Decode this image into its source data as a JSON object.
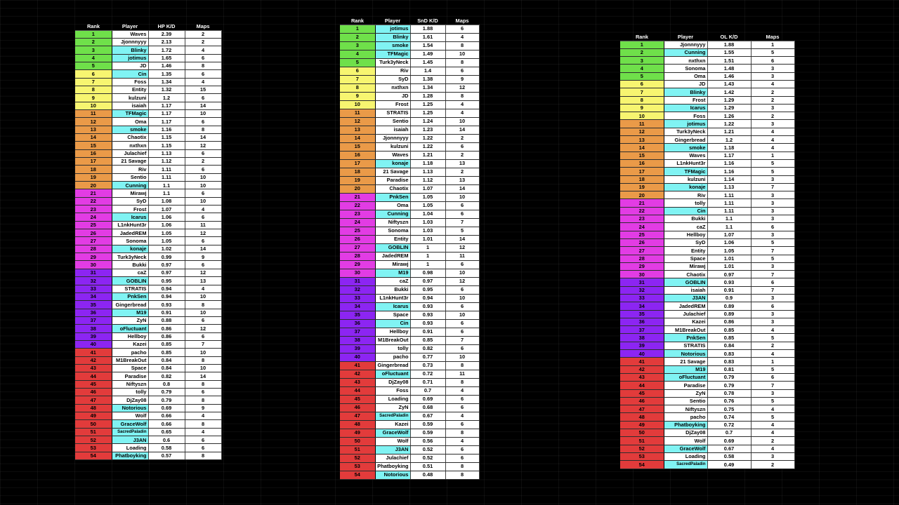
{
  "colors": {
    "background": "#000000",
    "cell": "#ffffff",
    "player_highlight": "#80f3f3",
    "tiers": [
      "#6fe04a",
      "#f7f570",
      "#ea9a48",
      "#e23ce4",
      "#8c25f2",
      "#e23b3b"
    ]
  },
  "tables": [
    {
      "headers": {
        "rank": "Rank",
        "player": "Player",
        "kd": "HP K/D",
        "maps": "Maps"
      },
      "tier_ranges": [
        [
          1,
          5
        ],
        [
          6,
          10
        ],
        [
          11,
          20
        ],
        [
          21,
          30
        ],
        [
          31,
          40
        ],
        [
          41,
          54
        ]
      ],
      "rows": [
        [
          "1",
          "Waves",
          "2.39",
          "2",
          false
        ],
        [
          "2",
          "Jjonnnyyy",
          "2.13",
          "2",
          false
        ],
        [
          "3",
          "Blinky",
          "1.72",
          "4",
          true
        ],
        [
          "4",
          "jotimus",
          "1.65",
          "6",
          true
        ],
        [
          "5",
          "JD",
          "1.46",
          "8",
          false
        ],
        [
          "6",
          "Cin",
          "1.35",
          "6",
          true
        ],
        [
          "7",
          "Foss",
          "1.34",
          "4",
          false
        ],
        [
          "8",
          "Entity",
          "1.32",
          "15",
          false
        ],
        [
          "9",
          "kulzuni",
          "1.2",
          "6",
          false
        ],
        [
          "10",
          "isaiah",
          "1.17",
          "14",
          false
        ],
        [
          "11",
          "TFMagic",
          "1.17",
          "10",
          true
        ],
        [
          "12",
          "Oma",
          "1.17",
          "6",
          false
        ],
        [
          "13",
          "smoke",
          "1.16",
          "8",
          true
        ],
        [
          "14",
          "Chaotix",
          "1.15",
          "14",
          false
        ],
        [
          "15",
          "nxthxn",
          "1.15",
          "12",
          false
        ],
        [
          "16",
          "Julachief",
          "1.13",
          "6",
          false
        ],
        [
          "17",
          "21 Savage",
          "1.12",
          "2",
          false
        ],
        [
          "18",
          "Riv",
          "1.11",
          "6",
          false
        ],
        [
          "19",
          "Sentio",
          "1.11",
          "10",
          false
        ],
        [
          "20",
          "Cunning",
          "1.1",
          "10",
          true
        ],
        [
          "21",
          "Mirawj",
          "1.1",
          "6",
          false
        ],
        [
          "22",
          "SyD",
          "1.08",
          "10",
          false
        ],
        [
          "23",
          "Frost",
          "1.07",
          "4",
          false
        ],
        [
          "24",
          "Icarus",
          "1.06",
          "6",
          true
        ],
        [
          "25",
          "L1nkHunt3r",
          "1.06",
          "11",
          false
        ],
        [
          "26",
          "JadedREM",
          "1.05",
          "12",
          false
        ],
        [
          "27",
          "Sonoma",
          "1.05",
          "6",
          false
        ],
        [
          "28",
          "konaje",
          "1.02",
          "14",
          true
        ],
        [
          "29",
          "Turk3yNeck",
          "0.99",
          "9",
          false
        ],
        [
          "30",
          "Bukki",
          "0.97",
          "6",
          false
        ],
        [
          "31",
          "caZ",
          "0.97",
          "12",
          false
        ],
        [
          "32",
          "GOBLIN",
          "0.95",
          "13",
          true
        ],
        [
          "33",
          "STRATIS",
          "0.94",
          "4",
          false
        ],
        [
          "34",
          "PnkSen",
          "0.94",
          "10",
          true
        ],
        [
          "35",
          "Gingerbread",
          "0.93",
          "8",
          false
        ],
        [
          "36",
          "M19",
          "0.91",
          "10",
          true
        ],
        [
          "37",
          "ZyN",
          "0.88",
          "6",
          false
        ],
        [
          "38",
          "oFluctuant",
          "0.86",
          "12",
          true
        ],
        [
          "39",
          "Hellboy",
          "0.86",
          "6",
          false
        ],
        [
          "40",
          "Kazei",
          "0.85",
          "7",
          false
        ],
        [
          "41",
          "pacho",
          "0.85",
          "10",
          false
        ],
        [
          "42",
          "M1BreakOut",
          "0.84",
          "8",
          false
        ],
        [
          "43",
          "Space",
          "0.84",
          "10",
          false
        ],
        [
          "44",
          "Paradise",
          "0.82",
          "14",
          false
        ],
        [
          "45",
          "Niftyszn",
          "0.8",
          "8",
          false
        ],
        [
          "46",
          "tolly",
          "0.79",
          "6",
          false
        ],
        [
          "47",
          "DjZay08",
          "0.79",
          "8",
          false
        ],
        [
          "48",
          "Notorious",
          "0.69",
          "9",
          true
        ],
        [
          "49",
          "Wolf",
          "0.66",
          "4",
          false
        ],
        [
          "50",
          "GraceWolf",
          "0.66",
          "8",
          true
        ],
        [
          "51",
          "SacredPaladin",
          "0.65",
          "4",
          true
        ],
        [
          "52",
          "J3AN",
          "0.6",
          "6",
          true
        ],
        [
          "53",
          "Loading",
          "0.58",
          "6",
          false
        ],
        [
          "54",
          "Phatboyking",
          "0.57",
          "8",
          true
        ]
      ]
    },
    {
      "headers": {
        "rank": "Rank",
        "player": "Player",
        "kd": "SnD K/D",
        "maps": "Maps"
      },
      "tier_ranges": [
        [
          1,
          5
        ],
        [
          6,
          10
        ],
        [
          11,
          20
        ],
        [
          21,
          30
        ],
        [
          31,
          40
        ],
        [
          41,
          54
        ]
      ],
      "rows": [
        [
          "1",
          "jotimus",
          "1.88",
          "6",
          true
        ],
        [
          "2",
          "Blinky",
          "1.61",
          "4",
          true
        ],
        [
          "3",
          "smoke",
          "1.54",
          "8",
          true
        ],
        [
          "4",
          "TFMagic",
          "1.49",
          "10",
          true
        ],
        [
          "5",
          "Turk3yNeck",
          "1.45",
          "8",
          false
        ],
        [
          "6",
          "Riv",
          "1.4",
          "6",
          false
        ],
        [
          "7",
          "SyD",
          "1.38",
          "9",
          false
        ],
        [
          "8",
          "nxthxn",
          "1.34",
          "12",
          false
        ],
        [
          "9",
          "JD",
          "1.28",
          "8",
          false
        ],
        [
          "10",
          "Frost",
          "1.25",
          "4",
          false
        ],
        [
          "11",
          "STRATIS",
          "1.25",
          "4",
          false
        ],
        [
          "12",
          "Sentio",
          "1.24",
          "10",
          false
        ],
        [
          "13",
          "isaiah",
          "1.23",
          "14",
          false
        ],
        [
          "14",
          "Jjonnnyyy",
          "1.22",
          "2",
          false
        ],
        [
          "15",
          "kulzuni",
          "1.22",
          "6",
          false
        ],
        [
          "16",
          "Waves",
          "1.21",
          "2",
          false
        ],
        [
          "17",
          "konaje",
          "1.18",
          "13",
          true
        ],
        [
          "18",
          "21 Savage",
          "1.13",
          "2",
          false
        ],
        [
          "19",
          "Paradise",
          "1.12",
          "13",
          false
        ],
        [
          "20",
          "Chaotix",
          "1.07",
          "14",
          false
        ],
        [
          "21",
          "PnkSen",
          "1.05",
          "10",
          true
        ],
        [
          "22",
          "Oma",
          "1.05",
          "6",
          false
        ],
        [
          "23",
          "Cunning",
          "1.04",
          "6",
          true
        ],
        [
          "24",
          "Niftyszn",
          "1.03",
          "7",
          false
        ],
        [
          "25",
          "Sonoma",
          "1.03",
          "5",
          false
        ],
        [
          "26",
          "Entity",
          "1.01",
          "14",
          false
        ],
        [
          "27",
          "GOBLIN",
          "1",
          "12",
          true
        ],
        [
          "28",
          "JadedREM",
          "1",
          "11",
          false
        ],
        [
          "29",
          "Mirawj",
          "1",
          "6",
          false
        ],
        [
          "30",
          "M19",
          "0.98",
          "10",
          true
        ],
        [
          "31",
          "caZ",
          "0.97",
          "12",
          false
        ],
        [
          "32",
          "Bukki",
          "0.95",
          "6",
          false
        ],
        [
          "33",
          "L1nkHunt3r",
          "0.94",
          "10",
          false
        ],
        [
          "34",
          "Icarus",
          "0.93",
          "6",
          true
        ],
        [
          "35",
          "Space",
          "0.93",
          "10",
          false
        ],
        [
          "36",
          "Cin",
          "0.93",
          "6",
          true
        ],
        [
          "37",
          "Hellboy",
          "0.91",
          "6",
          false
        ],
        [
          "38",
          "M1BreakOut",
          "0.85",
          "7",
          false
        ],
        [
          "39",
          "tolly",
          "0.82",
          "6",
          false
        ],
        [
          "40",
          "pacho",
          "0.77",
          "10",
          false
        ],
        [
          "41",
          "Gingerbread",
          "0.73",
          "8",
          false
        ],
        [
          "42",
          "oFluctuant",
          "0.72",
          "11",
          true
        ],
        [
          "43",
          "DjZay08",
          "0.71",
          "8",
          false
        ],
        [
          "44",
          "Foss",
          "0.7",
          "4",
          false
        ],
        [
          "45",
          "Loading",
          "0.69",
          "6",
          false
        ],
        [
          "46",
          "ZyN",
          "0.68",
          "6",
          false
        ],
        [
          "47",
          "SacredPaladin",
          "0.67",
          "4",
          true
        ],
        [
          "48",
          "Kazei",
          "0.59",
          "6",
          false
        ],
        [
          "49",
          "GraceWolf",
          "0.59",
          "8",
          true
        ],
        [
          "50",
          "Wolf",
          "0.56",
          "4",
          false
        ],
        [
          "51",
          "J3AN",
          "0.52",
          "6",
          true
        ],
        [
          "52",
          "Julachief",
          "0.52",
          "6",
          false
        ],
        [
          "53",
          "Phatboyking",
          "0.51",
          "8",
          false
        ],
        [
          "54",
          "Notorious",
          "0.48",
          "8",
          true
        ]
      ]
    },
    {
      "headers": {
        "rank": "Rank",
        "player": "Player",
        "kd": "OL K/D",
        "maps": "Maps"
      },
      "tier_ranges": [
        [
          1,
          5
        ],
        [
          6,
          10
        ],
        [
          11,
          20
        ],
        [
          21,
          30
        ],
        [
          31,
          40
        ],
        [
          41,
          54
        ]
      ],
      "rows": [
        [
          "1",
          "Jjonnnyyy",
          "1.88",
          "1",
          false
        ],
        [
          "2",
          "Cunning",
          "1.55",
          "5",
          true
        ],
        [
          "3",
          "nxthxn",
          "1.51",
          "6",
          false
        ],
        [
          "4",
          "Sonoma",
          "1.48",
          "3",
          false
        ],
        [
          "5",
          "Oma",
          "1.46",
          "3",
          false
        ],
        [
          "6",
          "JD",
          "1.43",
          "4",
          false
        ],
        [
          "7",
          "Blinky",
          "1.42",
          "2",
          true
        ],
        [
          "8",
          "Frost",
          "1.29",
          "2",
          false
        ],
        [
          "9",
          "Icarus",
          "1.29",
          "3",
          true
        ],
        [
          "10",
          "Foss",
          "1.26",
          "2",
          false
        ],
        [
          "11",
          "jotimus",
          "1.22",
          "3",
          true
        ],
        [
          "12",
          "Turk3yNeck",
          "1.21",
          "4",
          false
        ],
        [
          "13",
          "Gingerbread",
          "1.2",
          "4",
          false
        ],
        [
          "14",
          "smoke",
          "1.18",
          "4",
          true
        ],
        [
          "15",
          "Waves",
          "1.17",
          "1",
          false
        ],
        [
          "16",
          "L1nkHunt3r",
          "1.16",
          "5",
          false
        ],
        [
          "17",
          "TFMagic",
          "1.16",
          "5",
          true
        ],
        [
          "18",
          "kulzuni",
          "1.14",
          "3",
          false
        ],
        [
          "19",
          "konaje",
          "1.13",
          "7",
          true
        ],
        [
          "20",
          "Riv",
          "1.11",
          "3",
          false
        ],
        [
          "21",
          "tolly",
          "1.11",
          "3",
          false
        ],
        [
          "22",
          "Cin",
          "1.11",
          "3",
          true
        ],
        [
          "23",
          "Bukki",
          "1.1",
          "3",
          false
        ],
        [
          "24",
          "caZ",
          "1.1",
          "6",
          false
        ],
        [
          "25",
          "Hellboy",
          "1.07",
          "3",
          false
        ],
        [
          "26",
          "SyD",
          "1.06",
          "5",
          false
        ],
        [
          "27",
          "Entity",
          "1.05",
          "7",
          false
        ],
        [
          "28",
          "Space",
          "1.01",
          "5",
          false
        ],
        [
          "29",
          "Mirawj",
          "1.01",
          "3",
          false
        ],
        [
          "30",
          "Chaotix",
          "0.97",
          "7",
          false
        ],
        [
          "31",
          "GOBLIN",
          "0.93",
          "6",
          true
        ],
        [
          "32",
          "isaiah",
          "0.91",
          "7",
          false
        ],
        [
          "33",
          "J3AN",
          "0.9",
          "3",
          true
        ],
        [
          "34",
          "JadedREM",
          "0.89",
          "6",
          false
        ],
        [
          "35",
          "Julachief",
          "0.89",
          "3",
          false
        ],
        [
          "36",
          "Kazei",
          "0.86",
          "3",
          false
        ],
        [
          "37",
          "M1BreakOut",
          "0.85",
          "4",
          false
        ],
        [
          "38",
          "PnkSen",
          "0.85",
          "5",
          true
        ],
        [
          "39",
          "STRATIS",
          "0.84",
          "2",
          false
        ],
        [
          "40",
          "Notorious",
          "0.83",
          "4",
          true
        ],
        [
          "41",
          "21 Savage",
          "0.83",
          "1",
          false
        ],
        [
          "42",
          "M19",
          "0.81",
          "5",
          true
        ],
        [
          "43",
          "oFluctuant",
          "0.79",
          "6",
          true
        ],
        [
          "44",
          "Paradise",
          "0.79",
          "7",
          false
        ],
        [
          "45",
          "ZyN",
          "0.78",
          "3",
          false
        ],
        [
          "46",
          "Sentio",
          "0.76",
          "5",
          false
        ],
        [
          "47",
          "Niftyszn",
          "0.75",
          "4",
          false
        ],
        [
          "48",
          "pacho",
          "0.74",
          "5",
          false
        ],
        [
          "49",
          "Phatboyking",
          "0.72",
          "4",
          true
        ],
        [
          "50",
          "DjZay08",
          "0.7",
          "4",
          false
        ],
        [
          "51",
          "Wolf",
          "0.69",
          "2",
          false
        ],
        [
          "52",
          "GraceWolf",
          "0.67",
          "4",
          true
        ],
        [
          "53",
          "Loading",
          "0.58",
          "3",
          false
        ],
        [
          "54",
          "SacredPaladin",
          "0.49",
          "2",
          true
        ]
      ]
    }
  ]
}
